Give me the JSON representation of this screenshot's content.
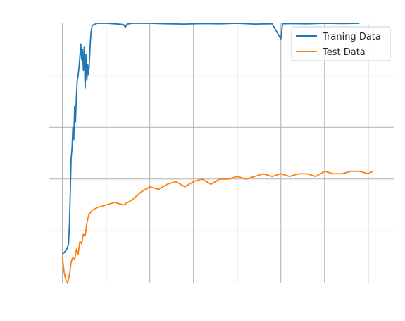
{
  "chart_data": {
    "type": "line",
    "title": "",
    "xlabel": "",
    "ylabel": "",
    "xlim": [
      -0.15,
      3.8
    ],
    "ylim": [
      0,
      1
    ],
    "x_gridlines": [
      0,
      0.5,
      1.0,
      1.5,
      2.0,
      2.5,
      3.0,
      3.5
    ],
    "y_gridlines": [
      0.2,
      0.4,
      0.6,
      0.8
    ],
    "tick_labels_visible": false,
    "grid": true,
    "legend": {
      "position": "top-right"
    },
    "series": [
      {
        "name": "Traning Data",
        "color": "#1f77b4",
        "points": [
          [
            0,
            0.11
          ],
          [
            0.03,
            0.12
          ],
          [
            0.05,
            0.13
          ],
          [
            0.07,
            0.15
          ],
          [
            0.08,
            0.22
          ],
          [
            0.09,
            0.35
          ],
          [
            0.1,
            0.48
          ],
          [
            0.11,
            0.52
          ],
          [
            0.12,
            0.6
          ],
          [
            0.13,
            0.55
          ],
          [
            0.14,
            0.68
          ],
          [
            0.15,
            0.62
          ],
          [
            0.16,
            0.72
          ],
          [
            0.17,
            0.78
          ],
          [
            0.18,
            0.8
          ],
          [
            0.19,
            0.83
          ],
          [
            0.2,
            0.87
          ],
          [
            0.21,
            0.92
          ],
          [
            0.22,
            0.86
          ],
          [
            0.23,
            0.9
          ],
          [
            0.24,
            0.82
          ],
          [
            0.25,
            0.91
          ],
          [
            0.26,
            0.75
          ],
          [
            0.27,
            0.88
          ],
          [
            0.28,
            0.78
          ],
          [
            0.29,
            0.84
          ],
          [
            0.3,
            0.8
          ],
          [
            0.31,
            0.86
          ],
          [
            0.32,
            0.93
          ],
          [
            0.33,
            0.97
          ],
          [
            0.34,
            0.99
          ],
          [
            0.36,
            0.995
          ],
          [
            0.4,
            1.0
          ],
          [
            0.5,
            1.0
          ],
          [
            0.6,
            0.998
          ],
          [
            0.7,
            0.995
          ],
          [
            0.72,
            0.985
          ],
          [
            0.74,
            0.997
          ],
          [
            0.8,
            1.0
          ],
          [
            1.0,
            1.0
          ],
          [
            1.2,
            0.998
          ],
          [
            1.4,
            0.997
          ],
          [
            1.6,
            0.999
          ],
          [
            1.8,
            0.998
          ],
          [
            2.0,
            1.0
          ],
          [
            2.2,
            0.997
          ],
          [
            2.4,
            0.998
          ],
          [
            2.5,
            0.94
          ],
          [
            2.52,
            0.998
          ],
          [
            2.6,
            0.999
          ],
          [
            2.8,
            0.998
          ],
          [
            3.0,
            1.0
          ],
          [
            3.2,
            0.999
          ],
          [
            3.4,
            1.0
          ]
        ]
      },
      {
        "name": "Test Data",
        "color": "#ff7f0e",
        "points": [
          [
            0,
            0.1
          ],
          [
            0.02,
            0.04
          ],
          [
            0.04,
            0.01
          ],
          [
            0.06,
            0.0
          ],
          [
            0.08,
            0.03
          ],
          [
            0.1,
            0.08
          ],
          [
            0.12,
            0.1
          ],
          [
            0.14,
            0.09
          ],
          [
            0.16,
            0.13
          ],
          [
            0.18,
            0.11
          ],
          [
            0.2,
            0.16
          ],
          [
            0.22,
            0.15
          ],
          [
            0.24,
            0.19
          ],
          [
            0.26,
            0.18
          ],
          [
            0.28,
            0.23
          ],
          [
            0.3,
            0.26
          ],
          [
            0.34,
            0.28
          ],
          [
            0.4,
            0.29
          ],
          [
            0.5,
            0.3
          ],
          [
            0.6,
            0.31
          ],
          [
            0.7,
            0.3
          ],
          [
            0.8,
            0.32
          ],
          [
            0.9,
            0.35
          ],
          [
            1.0,
            0.37
          ],
          [
            1.1,
            0.36
          ],
          [
            1.2,
            0.38
          ],
          [
            1.3,
            0.39
          ],
          [
            1.4,
            0.37
          ],
          [
            1.5,
            0.39
          ],
          [
            1.6,
            0.4
          ],
          [
            1.7,
            0.38
          ],
          [
            1.8,
            0.4
          ],
          [
            1.9,
            0.4
          ],
          [
            2.0,
            0.41
          ],
          [
            2.1,
            0.4
          ],
          [
            2.2,
            0.41
          ],
          [
            2.3,
            0.42
          ],
          [
            2.4,
            0.41
          ],
          [
            2.5,
            0.42
          ],
          [
            2.6,
            0.41
          ],
          [
            2.7,
            0.42
          ],
          [
            2.8,
            0.42
          ],
          [
            2.9,
            0.41
          ],
          [
            3.0,
            0.43
          ],
          [
            3.1,
            0.42
          ],
          [
            3.2,
            0.42
          ],
          [
            3.3,
            0.43
          ],
          [
            3.4,
            0.43
          ],
          [
            3.5,
            0.42
          ],
          [
            3.55,
            0.43
          ]
        ]
      }
    ]
  }
}
